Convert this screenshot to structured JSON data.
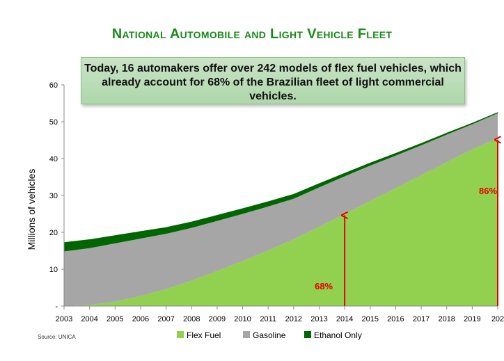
{
  "title": "National Automobile and Light Vehicle Fleet",
  "callout": "Today, 16 automakers offer over 242 models of flex fuel vehicles, which already account for 68% of the Brazilian fleet of light commercial vehicles.",
  "source": "Source: UNICA",
  "colors": {
    "flex_fuel": "#92d050",
    "gasoline": "#a6a6a6",
    "ethanol_only": "#006600",
    "annotation": "#e60000",
    "title": "#1a8a1a"
  },
  "chart_data": {
    "type": "area",
    "stacked": true,
    "ylabel": "Millions of vehicles",
    "xlabel": "",
    "x": [
      "2003",
      "2004",
      "2005",
      "2006",
      "2007",
      "2008",
      "2009",
      "2010",
      "2011",
      "2012",
      "2013",
      "2014",
      "2015",
      "2016",
      "2017",
      "2018",
      "2019",
      "202"
    ],
    "ylim": [
      0,
      60
    ],
    "yticks": [
      "-",
      "10",
      "20",
      "30",
      "40",
      "50",
      "60"
    ],
    "series": [
      {
        "name": "Flex Fuel",
        "values": [
          0.0,
          0.3,
          1.2,
          2.7,
          4.6,
          6.9,
          9.5,
          12.2,
          15.1,
          18.1,
          21.5,
          25.0,
          28.5,
          32.0,
          35.5,
          39.0,
          42.5,
          45.5
        ]
      },
      {
        "name": "Gasoline",
        "values": [
          14.8,
          15.4,
          15.8,
          15.6,
          15.0,
          14.3,
          13.6,
          12.8,
          11.9,
          11.0,
          10.7,
          10.2,
          9.6,
          8.8,
          8.1,
          7.5,
          6.8,
          6.8
        ]
      },
      {
        "name": "Ethanol Only",
        "values": [
          2.5,
          2.4,
          2.2,
          2.0,
          1.8,
          1.7,
          1.6,
          1.5,
          1.4,
          1.3,
          1.1,
          0.9,
          0.8,
          0.7,
          0.6,
          0.5,
          0.4,
          0.3
        ]
      }
    ],
    "annotations": [
      {
        "label": "68%",
        "x": "2014",
        "arrow_to": 25
      },
      {
        "label": "86%",
        "x": "202",
        "arrow_to": 45.5
      }
    ],
    "legend": {
      "placement": "bottom"
    },
    "grid": false
  }
}
